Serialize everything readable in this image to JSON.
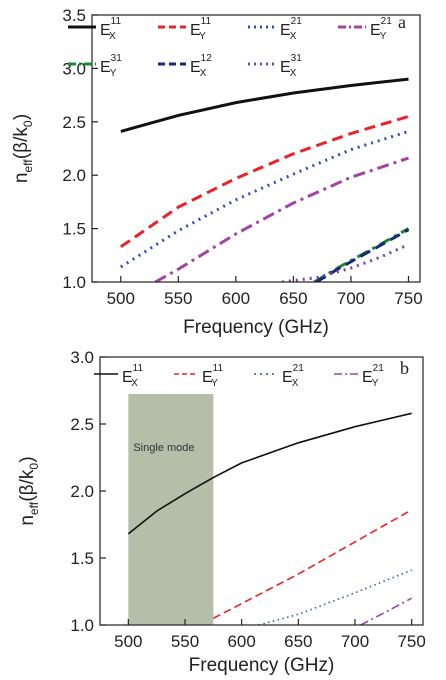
{
  "chart_data": [
    {
      "type": "line",
      "panel": "a",
      "xlabel": "Frequency (GHz)",
      "ylabel": "n_eff(β/k_0)",
      "xlim": [
        475,
        760
      ],
      "ylim": [
        1.0,
        3.5
      ],
      "xticks": [
        500,
        550,
        600,
        650,
        700,
        750
      ],
      "yticks": [
        1.0,
        1.5,
        2.0,
        2.5,
        3.0,
        3.5
      ],
      "ytick_labels": [
        "1.0",
        "1.5",
        "2.0",
        "2.5",
        "3.0",
        "3.5"
      ],
      "legend_position": "top",
      "series": [
        {
          "base": "E",
          "sub": "X",
          "sup": "11",
          "color": "#111111",
          "dash": "solid",
          "x": [
            500,
            550,
            600,
            650,
            700,
            750
          ],
          "y": [
            2.41,
            2.56,
            2.68,
            2.77,
            2.84,
            2.9
          ]
        },
        {
          "base": "E",
          "sub": "Y",
          "sup": "11",
          "color": "#e8232a",
          "dash": "dash",
          "x": [
            500,
            550,
            600,
            650,
            700,
            750
          ],
          "y": [
            1.33,
            1.7,
            1.97,
            2.2,
            2.39,
            2.55
          ]
        },
        {
          "base": "E",
          "sub": "X",
          "sup": "21",
          "color": "#2b4fb5",
          "dash": "dot",
          "x": [
            500,
            550,
            600,
            650,
            700,
            750
          ],
          "y": [
            1.14,
            1.48,
            1.77,
            2.01,
            2.24,
            2.41
          ]
        },
        {
          "base": "E",
          "sub": "Y",
          "sup": "21",
          "color": "#a443a4",
          "dash": "dashdot",
          "x": [
            530,
            550,
            600,
            650,
            700,
            750
          ],
          "y": [
            1.0,
            1.12,
            1.45,
            1.74,
            1.98,
            2.16
          ]
        },
        {
          "base": "E",
          "sub": "Y",
          "sup": "31",
          "color": "#1a8a2e",
          "dash": "dashdot",
          "x": [
            668,
            690,
            710,
            730,
            750
          ],
          "y": [
            1.0,
            1.14,
            1.26,
            1.38,
            1.5
          ]
        },
        {
          "base": "E",
          "sub": "X",
          "sup": "12",
          "color": "#16287a",
          "dash": "dash",
          "x": [
            670,
            690,
            710,
            730,
            750
          ],
          "y": [
            1.0,
            1.13,
            1.25,
            1.37,
            1.49
          ]
        },
        {
          "base": "E",
          "sub": "X",
          "sup": "31",
          "color": "#7a3db0",
          "dash": "dot",
          "x": [
            640,
            670,
            700,
            725,
            750
          ],
          "y": [
            1.0,
            1.04,
            1.13,
            1.23,
            1.35
          ]
        }
      ]
    },
    {
      "type": "line",
      "panel": "b",
      "xlabel": "Frequency (GHz)",
      "ylabel": "n_eff(β/k_0)",
      "xlim": [
        475,
        760
      ],
      "ylim": [
        1.0,
        3.0
      ],
      "xticks": [
        500,
        550,
        600,
        650,
        700,
        750
      ],
      "yticks": [
        1.0,
        1.5,
        2.0,
        2.5,
        3.0
      ],
      "ytick_labels": [
        "1.0",
        "1.5",
        "2.0",
        "2.5",
        "3.0"
      ],
      "legend_position": "top",
      "shaded_region": {
        "x_from": 500,
        "x_to": 575,
        "label": "Single mode",
        "color": "#aeb8a2"
      },
      "series": [
        {
          "base": "E",
          "sub": "X",
          "sup": "11",
          "color": "#111111",
          "dash": "solid",
          "x": [
            500,
            525,
            550,
            575,
            600,
            650,
            700,
            750
          ],
          "y": [
            1.68,
            1.85,
            1.98,
            2.1,
            2.21,
            2.36,
            2.48,
            2.58
          ]
        },
        {
          "base": "E",
          "sub": "Y",
          "sup": "11",
          "color": "#e8232a",
          "dash": "dash",
          "x": [
            575,
            600,
            650,
            700,
            750
          ],
          "y": [
            1.05,
            1.16,
            1.38,
            1.62,
            1.86
          ]
        },
        {
          "base": "E",
          "sub": "X",
          "sup": "21",
          "color": "#2b4fb5",
          "dash": "dot",
          "x": [
            615,
            650,
            700,
            750
          ],
          "y": [
            1.0,
            1.08,
            1.24,
            1.41
          ]
        },
        {
          "base": "E",
          "sub": "Y",
          "sup": "21",
          "color": "#a443a4",
          "dash": "dashdot",
          "x": [
            705,
            730,
            750
          ],
          "y": [
            1.0,
            1.11,
            1.2
          ]
        }
      ]
    }
  ]
}
